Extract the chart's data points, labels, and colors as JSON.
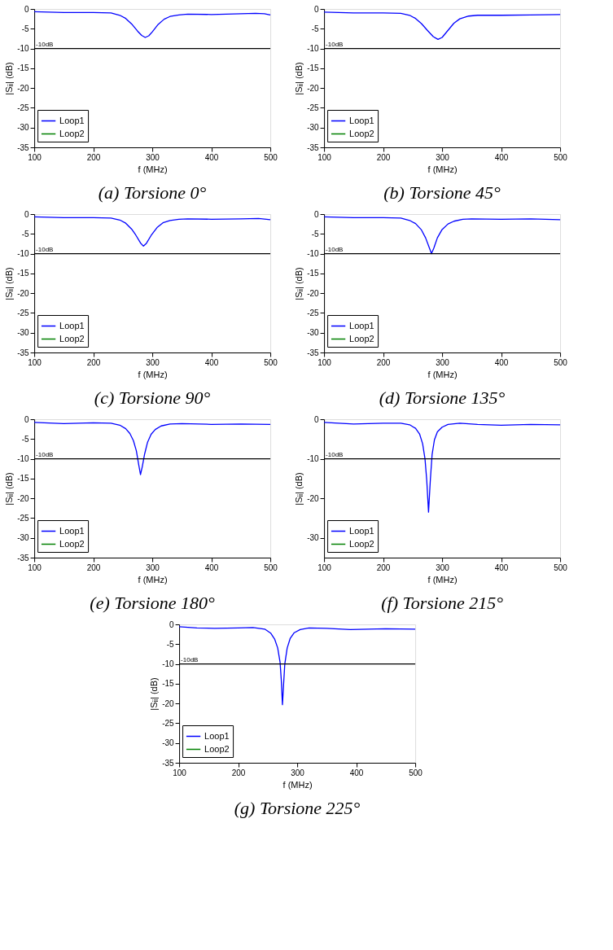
{
  "chart_data": [
    {
      "type": "line",
      "title": "(a) Torsione 0°",
      "xlabel": "f (MHz)",
      "ylabel": "|Sᵢᵢ| (dB)",
      "xlim": [
        100,
        500
      ],
      "ylim": [
        -35,
        0
      ],
      "xticks": [
        100,
        200,
        300,
        400,
        500
      ],
      "yticks": [
        0,
        -5,
        -10,
        -15,
        -20,
        -25,
        -30,
        -35
      ],
      "grid": false,
      "legend": "bottom left",
      "ref_lines": [
        {
          "axis": "y",
          "value": -10,
          "label": "-10dB",
          "color": "#000000"
        }
      ],
      "x": [
        100,
        150,
        200,
        230,
        245,
        255,
        265,
        275,
        282,
        288,
        294,
        300,
        310,
        320,
        330,
        345,
        360,
        400,
        450,
        475,
        490,
        500
      ],
      "series": [
        {
          "name": "Loop1",
          "color": "#0000ff",
          "values": [
            -0.7,
            -0.9,
            -0.9,
            -1.0,
            -1.6,
            -2.4,
            -3.8,
            -5.6,
            -6.7,
            -7.2,
            -6.8,
            -5.8,
            -3.9,
            -2.6,
            -1.9,
            -1.5,
            -1.3,
            -1.4,
            -1.2,
            -1.1,
            -1.2,
            -1.5
          ]
        },
        {
          "name": "Loop2",
          "color": "#008000",
          "values": [
            null,
            null,
            null,
            null,
            null,
            null,
            null,
            null,
            null,
            null,
            null,
            null,
            null,
            null,
            null,
            null,
            null,
            null,
            null,
            null,
            null,
            null
          ]
        }
      ]
    },
    {
      "type": "line",
      "title": "(b) Torsione 45°",
      "xlabel": "f (MHz)",
      "ylabel": "|Sᵢᵢ| (dB)",
      "xlim": [
        100,
        500
      ],
      "ylim": [
        -35,
        0
      ],
      "xticks": [
        100,
        200,
        300,
        400,
        500
      ],
      "yticks": [
        0,
        -5,
        -10,
        -15,
        -20,
        -25,
        -30,
        -35
      ],
      "grid": false,
      "legend": "bottom left",
      "ref_lines": [
        {
          "axis": "y",
          "value": -10,
          "label": "-10dB",
          "color": "#000000"
        }
      ],
      "x": [
        100,
        150,
        200,
        230,
        245,
        255,
        265,
        275,
        285,
        293,
        300,
        310,
        320,
        330,
        345,
        360,
        400,
        450,
        500
      ],
      "series": [
        {
          "name": "Loop1",
          "color": "#0000ff",
          "values": [
            -0.8,
            -1.0,
            -1.0,
            -1.1,
            -1.6,
            -2.4,
            -3.7,
            -5.4,
            -7.0,
            -7.7,
            -7.2,
            -5.4,
            -3.6,
            -2.5,
            -1.8,
            -1.6,
            -1.6,
            -1.5,
            -1.4
          ]
        },
        {
          "name": "Loop2",
          "color": "#008000",
          "values": [
            null,
            null,
            null,
            null,
            null,
            null,
            null,
            null,
            null,
            null,
            null,
            null,
            null,
            null,
            null,
            null,
            null,
            null,
            null
          ]
        }
      ]
    },
    {
      "type": "line",
      "title": "(c) Torsione 90°",
      "xlabel": "f (MHz)",
      "ylabel": "|Sᵢᵢ| (dB)",
      "xlim": [
        100,
        500
      ],
      "ylim": [
        -35,
        0
      ],
      "xticks": [
        100,
        200,
        300,
        400,
        500
      ],
      "yticks": [
        0,
        -5,
        -10,
        -15,
        -20,
        -25,
        -30,
        -35
      ],
      "grid": false,
      "legend": "bottom left",
      "ref_lines": [
        {
          "axis": "y",
          "value": -10,
          "label": "-10dB",
          "color": "#000000"
        }
      ],
      "x": [
        100,
        150,
        200,
        230,
        245,
        255,
        265,
        272,
        280,
        285,
        290,
        298,
        308,
        318,
        330,
        345,
        360,
        400,
        450,
        480,
        500
      ],
      "series": [
        {
          "name": "Loop1",
          "color": "#0000ff",
          "values": [
            -0.7,
            -0.9,
            -0.9,
            -1.0,
            -1.5,
            -2.3,
            -3.8,
            -5.3,
            -7.3,
            -8.1,
            -7.4,
            -5.4,
            -3.4,
            -2.2,
            -1.6,
            -1.3,
            -1.2,
            -1.3,
            -1.2,
            -1.1,
            -1.4
          ]
        },
        {
          "name": "Loop2",
          "color": "#008000",
          "values": [
            null,
            null,
            null,
            null,
            null,
            null,
            null,
            null,
            null,
            null,
            null,
            null,
            null,
            null,
            null,
            null,
            null,
            null,
            null,
            null,
            null
          ]
        }
      ]
    },
    {
      "type": "line",
      "title": "(d) Torsione 135°",
      "xlabel": "f (MHz)",
      "ylabel": "|Sᵢᵢ| (dB)",
      "xlim": [
        100,
        500
      ],
      "ylim": [
        -35,
        0
      ],
      "xticks": [
        100,
        200,
        300,
        400,
        500
      ],
      "yticks": [
        0,
        -5,
        -10,
        -15,
        -20,
        -25,
        -30,
        -35
      ],
      "grid": false,
      "legend": "bottom left",
      "ref_lines": [
        {
          "axis": "y",
          "value": -10,
          "label": "-10dB",
          "color": "#000000"
        }
      ],
      "x": [
        100,
        150,
        200,
        230,
        245,
        255,
        265,
        272,
        278,
        282,
        286,
        292,
        300,
        310,
        320,
        335,
        350,
        400,
        450,
        500
      ],
      "series": [
        {
          "name": "Loop1",
          "color": "#0000ff",
          "values": [
            -0.7,
            -0.9,
            -0.9,
            -1.0,
            -1.6,
            -2.4,
            -4.0,
            -6.0,
            -8.4,
            -10.0,
            -8.6,
            -6.0,
            -3.9,
            -2.5,
            -1.8,
            -1.3,
            -1.2,
            -1.3,
            -1.2,
            -1.4
          ]
        },
        {
          "name": "Loop2",
          "color": "#008000",
          "values": [
            null,
            null,
            null,
            null,
            null,
            null,
            null,
            null,
            null,
            null,
            null,
            null,
            null,
            null,
            null,
            null,
            null,
            null,
            null,
            null
          ]
        }
      ]
    },
    {
      "type": "line",
      "title": "(e) Torsione 180°",
      "xlabel": "f (MHz)",
      "ylabel": "|Sᵢᵢ| (dB)",
      "xlim": [
        100,
        500
      ],
      "ylim": [
        -35,
        0
      ],
      "xticks": [
        100,
        200,
        300,
        400,
        500
      ],
      "yticks": [
        0,
        -5,
        -10,
        -15,
        -20,
        -25,
        -30,
        -35
      ],
      "grid": false,
      "legend": "bottom left",
      "ref_lines": [
        {
          "axis": "y",
          "value": -10,
          "label": "-10dB",
          "color": "#000000"
        }
      ],
      "x": [
        100,
        150,
        200,
        230,
        245,
        255,
        262,
        268,
        273,
        277,
        280,
        283,
        287,
        292,
        298,
        305,
        315,
        330,
        350,
        400,
        450,
        500
      ],
      "series": [
        {
          "name": "Loop1",
          "color": "#0000ff",
          "values": [
            -0.8,
            -1.1,
            -0.9,
            -1.0,
            -1.5,
            -2.4,
            -3.6,
            -5.4,
            -8.0,
            -11.5,
            -14.0,
            -12.0,
            -8.8,
            -5.8,
            -3.8,
            -2.6,
            -1.7,
            -1.2,
            -1.1,
            -1.3,
            -1.2,
            -1.3
          ]
        },
        {
          "name": "Loop2",
          "color": "#008000",
          "values": [
            null,
            null,
            null,
            null,
            null,
            null,
            null,
            null,
            null,
            null,
            null,
            null,
            null,
            null,
            null,
            null,
            null,
            null,
            null,
            null,
            null,
            null
          ]
        }
      ]
    },
    {
      "type": "line",
      "title": "(f) Torsione 215°",
      "xlabel": "f (MHz)",
      "ylabel": "|Sᵢᵢ| (dB)",
      "xlim": [
        100,
        500
      ],
      "ylim": [
        -35,
        0
      ],
      "xticks": [
        100,
        200,
        300,
        400,
        500
      ],
      "yticks": [
        0,
        -10,
        -20,
        -30
      ],
      "grid": false,
      "legend": "bottom left",
      "ref_lines": [
        {
          "axis": "y",
          "value": -10,
          "label": "-10dB",
          "color": "#000000"
        }
      ],
      "x": [
        100,
        150,
        200,
        230,
        245,
        255,
        262,
        267,
        271,
        274,
        277,
        280,
        283,
        287,
        292,
        300,
        310,
        330,
        360,
        400,
        450,
        500
      ],
      "series": [
        {
          "name": "Loop1",
          "color": "#0000ff",
          "values": [
            -0.8,
            -1.2,
            -1.0,
            -1.0,
            -1.4,
            -2.3,
            -3.8,
            -6.2,
            -10.0,
            -15.5,
            -23.5,
            -15.5,
            -9.0,
            -5.2,
            -3.2,
            -2.0,
            -1.3,
            -1.0,
            -1.3,
            -1.5,
            -1.3,
            -1.4
          ]
        },
        {
          "name": "Loop2",
          "color": "#008000",
          "values": [
            null,
            null,
            null,
            null,
            null,
            null,
            null,
            null,
            null,
            null,
            null,
            null,
            null,
            null,
            null,
            null,
            null,
            null,
            null,
            null,
            null,
            null
          ]
        }
      ]
    },
    {
      "type": "line",
      "title": "(g) Torsione 225°",
      "xlabel": "f (MHz)",
      "ylabel": "|Sᵢᵢ| (dB)",
      "xlim": [
        100,
        500
      ],
      "ylim": [
        -35,
        0
      ],
      "xticks": [
        100,
        200,
        300,
        400,
        500
      ],
      "yticks": [
        0,
        -5,
        -10,
        -15,
        -20,
        -25,
        -30,
        -35
      ],
      "grid": false,
      "legend": "bottom left",
      "ref_lines": [
        {
          "axis": "y",
          "value": -10,
          "label": "-10dB",
          "color": "#000000"
        }
      ],
      "x": [
        100,
        130,
        160,
        200,
        225,
        245,
        255,
        262,
        267,
        271,
        273,
        275,
        277,
        279,
        283,
        288,
        295,
        305,
        320,
        350,
        390,
        450,
        500
      ],
      "series": [
        {
          "name": "Loop1",
          "color": "#0000ff",
          "values": [
            -0.6,
            -0.9,
            -1.0,
            -0.9,
            -0.8,
            -1.2,
            -2.2,
            -3.8,
            -6.0,
            -9.6,
            -14.0,
            -20.3,
            -15.0,
            -10.0,
            -6.0,
            -3.6,
            -2.1,
            -1.3,
            -0.9,
            -1.0,
            -1.3,
            -1.1,
            -1.2
          ]
        },
        {
          "name": "Loop2",
          "color": "#008000",
          "values": [
            null,
            null,
            null,
            null,
            null,
            null,
            null,
            null,
            null,
            null,
            null,
            null,
            null,
            null,
            null,
            null,
            null,
            null,
            null,
            null,
            null,
            null,
            null
          ]
        }
      ]
    }
  ]
}
